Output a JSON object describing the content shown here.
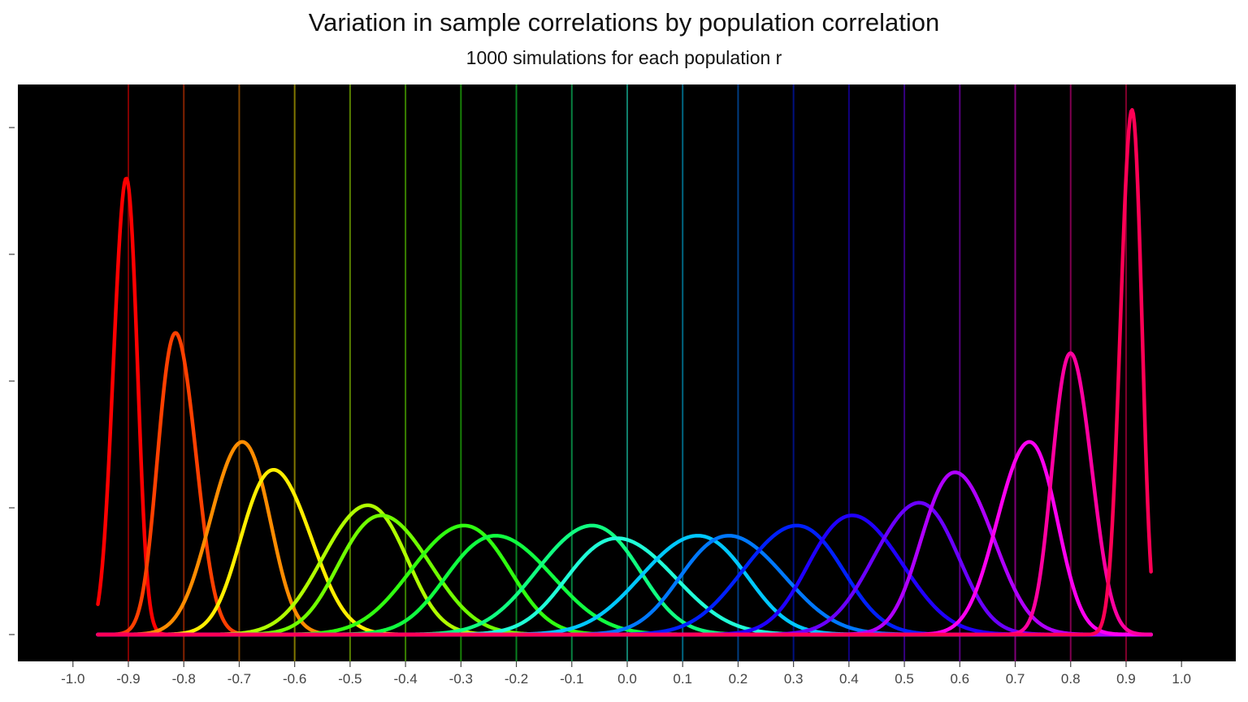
{
  "chart_data": {
    "type": "line",
    "title": "Variation in sample correlations by population correlation",
    "subtitle": "1000 simulations for each population r",
    "xlabel": "",
    "ylabel": "",
    "xlim": [
      -1.0,
      1.0
    ],
    "x_ticks": [
      "-1.0",
      "-0.9",
      "-0.8",
      "-0.7",
      "-0.6",
      "-0.5",
      "-0.4",
      "-0.3",
      "-0.2",
      "-0.1",
      "0.0",
      "0.1",
      "0.2",
      "0.3",
      "0.4",
      "0.5",
      "0.6",
      "0.7",
      "0.8",
      "0.9",
      "1.0"
    ],
    "background": "#000000",
    "grid": false,
    "reference_lines": [
      -0.9,
      -0.8,
      -0.7,
      -0.6,
      -0.5,
      -0.4,
      -0.3,
      -0.2,
      -0.1,
      0.0,
      0.1,
      0.2,
      0.3,
      0.4,
      0.5,
      0.6,
      0.7,
      0.8,
      0.9
    ],
    "series": [
      {
        "r": -0.9,
        "color": "#ff0000",
        "peak_x": -0.91,
        "peak_density": 18.0,
        "sd": 0.02
      },
      {
        "r": -0.8,
        "color": "#ff4000",
        "peak_x": -0.805,
        "peak_density": 11.9,
        "sd": 0.032
      },
      {
        "r": -0.7,
        "color": "#ff8c00",
        "peak_x": -0.71,
        "peak_density": 7.6,
        "sd": 0.05
      },
      {
        "r": -0.6,
        "color": "#ffee00",
        "peak_x": -0.62,
        "peak_density": 6.5,
        "sd": 0.058
      },
      {
        "r": -0.5,
        "color": "#b0ff00",
        "peak_x": -0.49,
        "peak_density": 5.1,
        "sd": 0.07
      },
      {
        "r": -0.4,
        "color": "#70ff00",
        "peak_x": -0.42,
        "peak_density": 4.7,
        "sd": 0.076
      },
      {
        "r": -0.3,
        "color": "#30ff10",
        "peak_x": -0.32,
        "peak_density": 4.3,
        "sd": 0.082
      },
      {
        "r": -0.2,
        "color": "#10ff40",
        "peak_x": -0.21,
        "peak_density": 3.9,
        "sd": 0.088
      },
      {
        "r": -0.1,
        "color": "#10ff80",
        "peak_x": -0.09,
        "peak_density": 4.3,
        "sd": 0.085
      },
      {
        "r": 0.0,
        "color": "#20ffd8",
        "peak_x": 0.01,
        "peak_density": 3.8,
        "sd": 0.09
      },
      {
        "r": 0.1,
        "color": "#00c8ff",
        "peak_x": 0.1,
        "peak_density": 3.9,
        "sd": 0.088
      },
      {
        "r": 0.2,
        "color": "#0078ff",
        "peak_x": 0.21,
        "peak_density": 3.9,
        "sd": 0.086
      },
      {
        "r": 0.3,
        "color": "#0020ff",
        "peak_x": 0.28,
        "peak_density": 4.3,
        "sd": 0.083
      },
      {
        "r": 0.4,
        "color": "#2000ff",
        "peak_x": 0.43,
        "peak_density": 4.7,
        "sd": 0.078
      },
      {
        "r": 0.5,
        "color": "#6a00ff",
        "peak_x": 0.505,
        "peak_density": 5.2,
        "sd": 0.07
      },
      {
        "r": 0.6,
        "color": "#b000ff",
        "peak_x": 0.61,
        "peak_density": 6.4,
        "sd": 0.06
      },
      {
        "r": 0.7,
        "color": "#ff00f0",
        "peak_x": 0.71,
        "peak_density": 7.6,
        "sd": 0.05
      },
      {
        "r": 0.8,
        "color": "#ff00a0",
        "peak_x": 0.81,
        "peak_density": 11.1,
        "sd": 0.033
      },
      {
        "r": 0.9,
        "color": "#ff0055",
        "peak_x": 0.905,
        "peak_density": 20.7,
        "sd": 0.018
      }
    ]
  }
}
